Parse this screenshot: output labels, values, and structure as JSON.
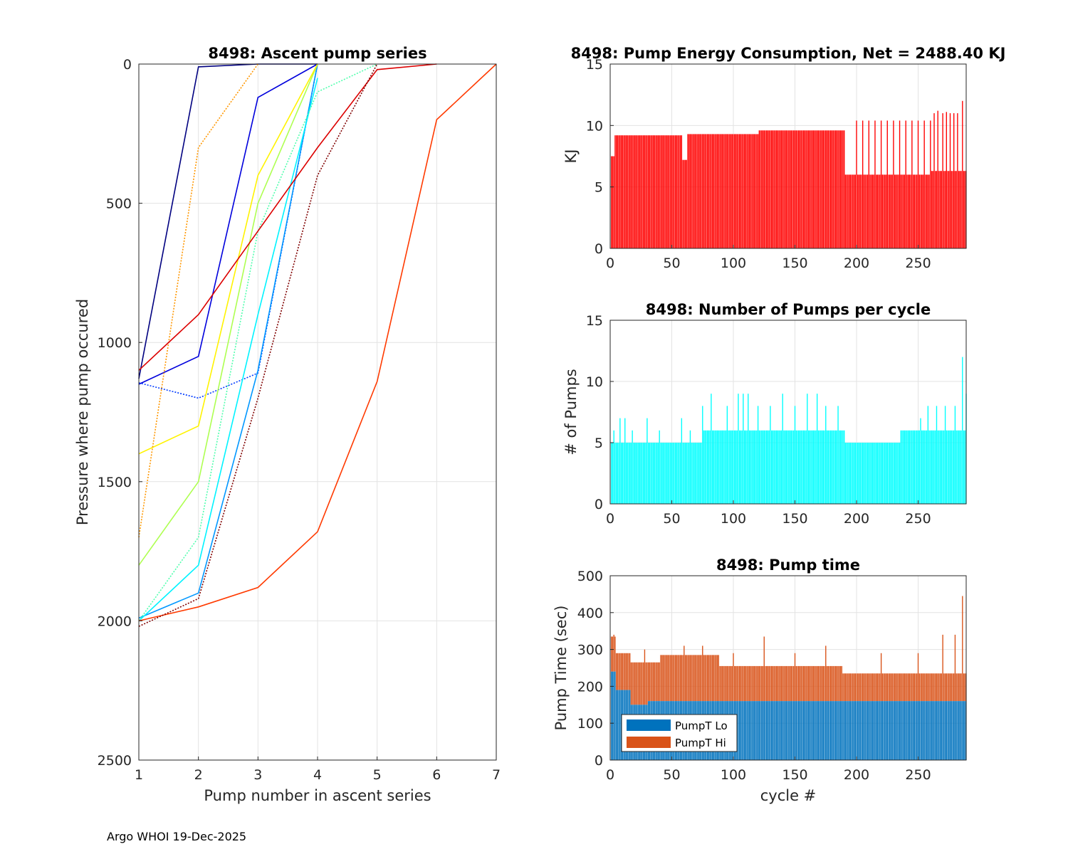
{
  "figure": {
    "footer": "Argo WHOI 19-Dec-2025"
  },
  "chart_data": [
    {
      "id": "ascent",
      "type": "line",
      "title": "8498: Ascent pump series",
      "xlabel": "Pump number in ascent series",
      "ylabel": "Pressure where pump occured",
      "xlim": [
        1,
        7
      ],
      "ylim": [
        0,
        2500
      ],
      "y_reversed": true,
      "xticks": [
        1,
        2,
        3,
        4,
        5,
        6,
        7
      ],
      "yticks": [
        0,
        500,
        1000,
        1500,
        2000,
        2500
      ],
      "grid": true,
      "series_note": "approx. 290 cycle profiles colored by cycle index (jet colormap); representative profiles listed",
      "series": [
        {
          "name": "profile-a",
          "x": [
            1,
            2,
            3,
            4
          ],
          "y": [
            1130,
            10,
            0,
            0
          ]
        },
        {
          "name": "profile-b",
          "x": [
            1,
            2,
            3,
            4
          ],
          "y": [
            1150,
            1050,
            120,
            0
          ]
        },
        {
          "name": "profile-c",
          "x": [
            1,
            2,
            3,
            4
          ],
          "y": [
            1145,
            1200,
            1110,
            0
          ]
        },
        {
          "name": "profile-d",
          "x": [
            1,
            2,
            3,
            4
          ],
          "y": [
            1990,
            1900,
            1100,
            0
          ]
        },
        {
          "name": "profile-e",
          "x": [
            1,
            2,
            3,
            4
          ],
          "y": [
            2000,
            1800,
            900,
            50
          ]
        },
        {
          "name": "profile-f",
          "x": [
            1,
            2,
            3,
            4,
            5
          ],
          "y": [
            2000,
            1700,
            600,
            100,
            0
          ]
        },
        {
          "name": "profile-g",
          "x": [
            1,
            2,
            3,
            4
          ],
          "y": [
            1800,
            1500,
            500,
            0
          ]
        },
        {
          "name": "profile-h",
          "x": [
            1,
            2,
            3,
            4
          ],
          "y": [
            1400,
            1300,
            400,
            0
          ]
        },
        {
          "name": "profile-i",
          "x": [
            1,
            2,
            3
          ],
          "y": [
            1700,
            300,
            0
          ]
        },
        {
          "name": "profile-j",
          "x": [
            1,
            2,
            3,
            4,
            5,
            6,
            7
          ],
          "y": [
            2000,
            1950,
            1880,
            1680,
            1140,
            200,
            0
          ]
        },
        {
          "name": "profile-k",
          "x": [
            1,
            2,
            3,
            4,
            5,
            6
          ],
          "y": [
            1100,
            900,
            600,
            300,
            20,
            0
          ]
        },
        {
          "name": "profile-l",
          "x": [
            1,
            2,
            3,
            4,
            5
          ],
          "y": [
            2020,
            1920,
            1200,
            400,
            0
          ]
        }
      ]
    },
    {
      "id": "energy",
      "type": "bar",
      "title": "8498: Pump Energy Consumption,  Net = 2488.40 KJ",
      "xlabel": "",
      "ylabel": "KJ",
      "xlim": [
        0,
        289
      ],
      "ylim": [
        0,
        15
      ],
      "xticks": [
        0,
        50,
        100,
        150,
        200,
        250
      ],
      "yticks": [
        0,
        5,
        10,
        15
      ],
      "grid": true,
      "color": "#ff0000",
      "series_note": "one bar per cycle 1-289; values read approximately per cycle band",
      "segments": [
        {
          "from": 1,
          "to": 3,
          "value": 7.5
        },
        {
          "from": 4,
          "to": 58,
          "value": 9.2,
          "extras": {
            "60": 7.2,
            "10": 9.4,
            "30": 9.3
          }
        },
        {
          "from": 59,
          "to": 62,
          "value": 7.2
        },
        {
          "from": 63,
          "to": 120,
          "value": 9.3
        },
        {
          "from": 121,
          "to": 190,
          "value": 9.6
        },
        {
          "from": 191,
          "to": 260,
          "value": 6.0
        },
        {
          "from": 261,
          "to": 289,
          "value": 6.3
        }
      ],
      "spikes": [
        {
          "cycle": 200,
          "value": 10.4
        },
        {
          "cycle": 205,
          "value": 10.4
        },
        {
          "cycle": 210,
          "value": 10.4
        },
        {
          "cycle": 215,
          "value": 10.4
        },
        {
          "cycle": 220,
          "value": 10.4
        },
        {
          "cycle": 225,
          "value": 10.4
        },
        {
          "cycle": 230,
          "value": 10.4
        },
        {
          "cycle": 235,
          "value": 10.4
        },
        {
          "cycle": 240,
          "value": 10.4
        },
        {
          "cycle": 245,
          "value": 10.4
        },
        {
          "cycle": 250,
          "value": 10.4
        },
        {
          "cycle": 255,
          "value": 10.4
        },
        {
          "cycle": 260,
          "value": 10.4
        },
        {
          "cycle": 263,
          "value": 11.0
        },
        {
          "cycle": 266,
          "value": 11.2
        },
        {
          "cycle": 270,
          "value": 11.0
        },
        {
          "cycle": 273,
          "value": 11.1
        },
        {
          "cycle": 276,
          "value": 11.0
        },
        {
          "cycle": 279,
          "value": 11.0
        },
        {
          "cycle": 282,
          "value": 11.0
        },
        {
          "cycle": 286,
          "value": 12.0
        }
      ]
    },
    {
      "id": "pumps",
      "type": "bar",
      "title": "8498: Number of Pumps per cycle",
      "xlabel": "",
      "ylabel": "# of Pumps",
      "xlim": [
        0,
        289
      ],
      "ylim": [
        0,
        15
      ],
      "xticks": [
        0,
        50,
        100,
        150,
        200,
        250
      ],
      "yticks": [
        0,
        5,
        10,
        15
      ],
      "grid": true,
      "color": "#00ffff",
      "series_note": "one bar per cycle 1-289; typical value 5-6 with spikes to 7-9, max 12 near cycle 286",
      "segments": [
        {
          "from": 1,
          "to": 75,
          "value": 5
        },
        {
          "from": 76,
          "to": 190,
          "value": 6
        },
        {
          "from": 191,
          "to": 235,
          "value": 5
        },
        {
          "from": 236,
          "to": 289,
          "value": 6
        }
      ],
      "spikes": [
        {
          "cycle": 3,
          "value": 6
        },
        {
          "cycle": 8,
          "value": 7
        },
        {
          "cycle": 12,
          "value": 7
        },
        {
          "cycle": 18,
          "value": 6
        },
        {
          "cycle": 30,
          "value": 7
        },
        {
          "cycle": 40,
          "value": 6
        },
        {
          "cycle": 58,
          "value": 7
        },
        {
          "cycle": 65,
          "value": 6
        },
        {
          "cycle": 75,
          "value": 8
        },
        {
          "cycle": 82,
          "value": 9
        },
        {
          "cycle": 95,
          "value": 8
        },
        {
          "cycle": 104,
          "value": 9
        },
        {
          "cycle": 108,
          "value": 9
        },
        {
          "cycle": 112,
          "value": 9
        },
        {
          "cycle": 120,
          "value": 8
        },
        {
          "cycle": 130,
          "value": 8
        },
        {
          "cycle": 140,
          "value": 9
        },
        {
          "cycle": 150,
          "value": 8
        },
        {
          "cycle": 160,
          "value": 9
        },
        {
          "cycle": 168,
          "value": 9
        },
        {
          "cycle": 175,
          "value": 8
        },
        {
          "cycle": 185,
          "value": 8
        },
        {
          "cycle": 240,
          "value": 6
        },
        {
          "cycle": 252,
          "value": 7
        },
        {
          "cycle": 258,
          "value": 8
        },
        {
          "cycle": 265,
          "value": 8
        },
        {
          "cycle": 272,
          "value": 8
        },
        {
          "cycle": 280,
          "value": 8
        },
        {
          "cycle": 286,
          "value": 12
        },
        {
          "cycle": 289,
          "value": 9
        }
      ]
    },
    {
      "id": "pumptime",
      "type": "bar",
      "stacked": true,
      "title": "8498: Pump time",
      "xlabel": "cycle #",
      "ylabel": "Pump Time (sec)",
      "xlim": [
        0,
        289
      ],
      "ylim": [
        0,
        500
      ],
      "xticks": [
        0,
        50,
        100,
        150,
        200,
        250
      ],
      "yticks": [
        0,
        100,
        200,
        300,
        400,
        500
      ],
      "grid": true,
      "legend": {
        "position": "bottom-left",
        "entries": [
          {
            "name": "PumpT Lo",
            "color": "#0072bd"
          },
          {
            "name": "PumpT Hi",
            "color": "#d95319"
          }
        ]
      },
      "series": [
        {
          "name": "PumpT Lo",
          "color": "#0072bd",
          "segments": [
            {
              "from": 1,
              "to": 4,
              "value": 240
            },
            {
              "from": 5,
              "to": 16,
              "value": 190
            },
            {
              "from": 17,
              "to": 30,
              "value": 150
            },
            {
              "from": 31,
              "to": 289,
              "value": 160
            }
          ]
        },
        {
          "name": "PumpT Hi",
          "color": "#d95319",
          "total_segments": [
            {
              "from": 1,
              "to": 4,
              "value": 335
            },
            {
              "from": 5,
              "to": 16,
              "value": 290
            },
            {
              "from": 17,
              "to": 40,
              "value": 265
            },
            {
              "from": 41,
              "to": 88,
              "value": 285
            },
            {
              "from": 89,
              "to": 188,
              "value": 255
            },
            {
              "from": 189,
              "to": 289,
              "value": 235
            }
          ],
          "spikes_total": [
            {
              "cycle": 3,
              "value": 340
            },
            {
              "cycle": 28,
              "value": 300
            },
            {
              "cycle": 60,
              "value": 310
            },
            {
              "cycle": 75,
              "value": 310
            },
            {
              "cycle": 100,
              "value": 290
            },
            {
              "cycle": 125,
              "value": 335
            },
            {
              "cycle": 150,
              "value": 290
            },
            {
              "cycle": 175,
              "value": 310
            },
            {
              "cycle": 220,
              "value": 290
            },
            {
              "cycle": 250,
              "value": 290
            },
            {
              "cycle": 270,
              "value": 340
            },
            {
              "cycle": 280,
              "value": 340
            },
            {
              "cycle": 286,
              "value": 445
            }
          ]
        }
      ]
    }
  ]
}
